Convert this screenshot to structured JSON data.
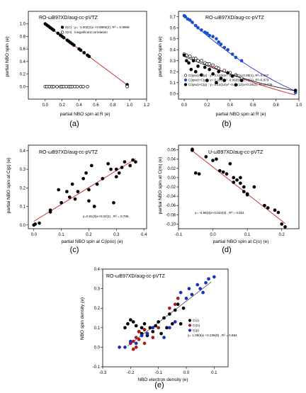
{
  "chart_data": [
    {
      "id": "a",
      "type": "scatter",
      "panel_label": "(a)",
      "title": "RO-ωB97XD/aug-cc-pVTZ",
      "xlabel": "partial NBO spin at R  (e)",
      "ylabel": "partial NBO spin  (e)",
      "xlim": [
        -0.2,
        1.2
      ],
      "ylim": [
        -0.2,
        1.2
      ],
      "xticks": [
        0.0,
        0.2,
        0.4,
        0.6,
        0.8,
        1.0,
        1.2
      ],
      "xtick_labels": [
        "0.0",
        "0.2",
        "0.4",
        "0.6",
        "0.8",
        "1.0",
        "1.2"
      ],
      "yticks": [
        0.0,
        0.2,
        0.4,
        0.6,
        0.8,
        1.0
      ],
      "ytick_labels": [
        "0.0",
        "0.2",
        "0.4",
        "0.6",
        "0.8",
        "1.0"
      ],
      "legend": [
        "Σ(C) : y= -1.002(2)x +0.9993(2), R² = 0.9999",
        "Σ(H) : insignificant correlation"
      ],
      "series": [
        {
          "name": "Σ(C)",
          "marker": "filled",
          "color": "#000000",
          "x": [
            0.0,
            0.02,
            0.04,
            0.06,
            0.08,
            0.1,
            0.15,
            0.18,
            0.2,
            0.22,
            0.26,
            0.28,
            0.3,
            0.32,
            0.34,
            0.4,
            0.42,
            0.46,
            0.5,
            0.52,
            0.97
          ],
          "y": [
            1.0,
            0.98,
            0.96,
            0.94,
            0.92,
            0.9,
            0.85,
            0.82,
            0.8,
            0.78,
            0.74,
            0.72,
            0.7,
            0.68,
            0.66,
            0.6,
            0.58,
            0.54,
            0.5,
            0.48,
            0.03
          ]
        },
        {
          "name": "Σ(H)",
          "marker": "open",
          "color": "#000000",
          "x": [
            0.0,
            0.02,
            0.05,
            0.08,
            0.1,
            0.14,
            0.18,
            0.2,
            0.22,
            0.25,
            0.28,
            0.3,
            0.32,
            0.35,
            0.38,
            0.42,
            0.45,
            0.5,
            0.97
          ],
          "y": [
            0.0,
            0.0,
            0.0,
            0.0,
            0.0,
            0.0,
            0.0,
            0.0,
            0.0,
            0.0,
            0.0,
            0.0,
            0.0,
            0.0,
            0.0,
            0.0,
            0.0,
            0.0,
            0.0
          ]
        }
      ],
      "fit_lines": [
        {
          "color": "#cc2222",
          "x": [
            0.0,
            0.97
          ],
          "y": [
            0.9993,
            0.027
          ]
        }
      ]
    },
    {
      "id": "b",
      "type": "scatter",
      "panel_label": "(b)",
      "title": "RO-ωB97XD/aug-cc-pVTZ",
      "xlabel": "partial NBO spin at R  (e)",
      "ylabel": "partial NBO spin  (e)",
      "xlim": [
        -0.05,
        1.0
      ],
      "ylim": [
        -0.05,
        0.75
      ],
      "xticks": [
        0.0,
        0.2,
        0.4,
        0.6,
        0.8,
        1.0
      ],
      "xtick_labels": [
        "0.0",
        "0.2",
        "0.4",
        "0.6",
        "0.8",
        "1.0"
      ],
      "yticks": [
        0.0,
        0.1,
        0.2,
        0.3,
        0.4,
        0.5,
        0.6,
        0.7
      ],
      "ytick_labels": [
        "0.0",
        "0.1",
        "0.2",
        "0.3",
        "0.4",
        "0.5",
        "0.6",
        "0.7"
      ],
      "legend": [
        "C(ipso)+C(p) : y= 0.12(6)x² -0.50(7)x+0.36(1), R²=0.947",
        "C(ipso)+C(p) : y= 0.26(6)x² -0.96(8)x+0.71(1), R²=0.973",
        "C(ipso)+C(p) : y= 0.14(14)x² -0.46(12)x+0.34(2), R²=0.739"
      ],
      "series": [
        {
          "name": "open",
          "marker": "open",
          "color": "#000000",
          "x": [
            0.0,
            0.02,
            0.05,
            0.08,
            0.1,
            0.12,
            0.15,
            0.18,
            0.2,
            0.22,
            0.25,
            0.28,
            0.3,
            0.35,
            0.4,
            0.45,
            0.5
          ],
          "y": [
            0.36,
            0.35,
            0.34,
            0.32,
            0.32,
            0.3,
            0.3,
            0.28,
            0.27,
            0.27,
            0.26,
            0.24,
            0.23,
            0.21,
            0.19,
            0.17,
            0.14
          ]
        },
        {
          "name": "blue",
          "marker": "filled",
          "color": "#1a4fcf",
          "x": [
            0.0,
            0.01,
            0.03,
            0.05,
            0.07,
            0.1,
            0.12,
            0.15,
            0.18,
            0.2,
            0.22,
            0.25,
            0.28,
            0.3,
            0.32,
            0.35,
            0.38,
            0.42,
            0.45,
            0.5,
            0.97
          ],
          "y": [
            0.71,
            0.7,
            0.68,
            0.67,
            0.65,
            0.62,
            0.6,
            0.58,
            0.56,
            0.55,
            0.53,
            0.52,
            0.5,
            0.47,
            0.45,
            0.42,
            0.4,
            0.36,
            0.33,
            0.3,
            0.01
          ]
        },
        {
          "name": "black",
          "marker": "filled",
          "color": "#000000",
          "x": [
            0.0,
            0.02,
            0.04,
            0.06,
            0.08,
            0.1,
            0.12,
            0.15,
            0.18,
            0.2,
            0.22,
            0.25,
            0.28,
            0.3,
            0.32,
            0.35,
            0.38,
            0.42,
            0.45,
            0.5,
            0.97
          ],
          "y": [
            0.35,
            0.3,
            0.28,
            0.22,
            0.3,
            0.2,
            0.25,
            0.17,
            0.24,
            0.12,
            0.22,
            0.18,
            0.1,
            0.2,
            0.14,
            0.12,
            0.19,
            0.16,
            0.08,
            0.12,
            0.03
          ]
        }
      ],
      "fit_lines": [
        {
          "color": "#cc2222",
          "coef": [
            0.12,
            -0.5,
            0.36
          ],
          "x_range": [
            0.0,
            0.97
          ]
        },
        {
          "color": "#2233cc",
          "coef": [
            0.26,
            -0.96,
            0.71
          ],
          "x_range": [
            0.0,
            0.97
          ]
        },
        {
          "color": "#222222",
          "coef": [
            0.14,
            -0.46,
            0.34
          ],
          "x_range": [
            0.0,
            0.97
          ]
        }
      ]
    },
    {
      "id": "c",
      "type": "scatter",
      "panel_label": "(c)",
      "title": "RO-ωB97XD/aug-cc-pVTZ",
      "xlabel": "partial NBO spin at C(ipso)  (e)",
      "ylabel": "partial NBO spin at C(p)  (e)",
      "xlim": [
        -0.02,
        0.41
      ],
      "ylim": [
        -0.02,
        0.43
      ],
      "xticks": [
        0.0,
        0.1,
        0.2,
        0.3,
        0.4
      ],
      "xtick_labels": [
        "0.0",
        "0.1",
        "0.2",
        "0.3",
        "0.4"
      ],
      "yticks": [
        0.0,
        0.1,
        0.2,
        0.3,
        0.4
      ],
      "ytick_labels": [
        "0.0",
        "0.1",
        "0.2",
        "0.3",
        "0.4"
      ],
      "legend": [
        "y=0.91(8)x+0.02(2) ,  R² = 0.785"
      ],
      "series": [
        {
          "name": "points",
          "marker": "filled",
          "color": "#000000",
          "x": [
            0.0,
            0.005,
            0.02,
            0.06,
            0.06,
            0.09,
            0.1,
            0.12,
            0.13,
            0.14,
            0.15,
            0.16,
            0.18,
            0.19,
            0.2,
            0.2,
            0.21,
            0.22,
            0.23,
            0.25,
            0.27,
            0.28,
            0.29,
            0.3,
            0.3,
            0.31,
            0.32,
            0.33,
            0.35,
            0.36,
            0.37
          ],
          "y": [
            0.0,
            0.005,
            0.01,
            0.07,
            0.08,
            0.19,
            0.12,
            0.18,
            0.15,
            0.22,
            0.14,
            0.18,
            0.25,
            0.28,
            0.13,
            0.19,
            0.32,
            0.1,
            0.22,
            0.25,
            0.33,
            0.3,
            0.12,
            0.3,
            0.26,
            0.28,
            0.31,
            0.34,
            0.32,
            0.35,
            0.34
          ]
        }
      ],
      "fit_lines": [
        {
          "color": "#cc2222",
          "x": [
            0.0,
            0.37
          ],
          "y": [
            0.02,
            0.3567
          ]
        }
      ]
    },
    {
      "id": "d",
      "type": "scatter",
      "panel_label": "(d)",
      "title": "U-ωB97XD/aug-cc-pVTZ",
      "xlabel": "partial NBO spin at C(o)  (e)",
      "ylabel": "partial NBO spin at C(m)  (e)",
      "xlim": [
        -0.1,
        0.25
      ],
      "ylim": [
        -0.11,
        0.07
      ],
      "xticks": [
        -0.1,
        0.0,
        0.1,
        0.2
      ],
      "xtick_labels": [
        "-0.1",
        "0.0",
        "0.1",
        "0.2"
      ],
      "yticks": [
        -0.1,
        -0.08,
        -0.06,
        -0.04,
        -0.02,
        0.0,
        0.02,
        0.04,
        0.06
      ],
      "ytick_labels": [
        "-0.10",
        "-0.08",
        "-0.06",
        "-0.04",
        "-0.02",
        "0.00",
        "0.02",
        "0.04",
        "0.06"
      ],
      "legend": [
        "y= -0.58(3)x+0.023(3) ,  R² = 0.921"
      ],
      "series": [
        {
          "name": "points",
          "marker": "filled",
          "color": "#000000",
          "x": [
            -0.06,
            -0.06,
            -0.05,
            -0.04,
            -0.02,
            0.0,
            0.01,
            0.02,
            0.03,
            0.04,
            0.05,
            0.06,
            0.06,
            0.07,
            0.08,
            0.08,
            0.09,
            0.09,
            0.1,
            0.1,
            0.12,
            0.15,
            0.16,
            0.18,
            0.19,
            0.2,
            0.21
          ],
          "y": [
            0.061,
            0.059,
            0.01,
            0.008,
            0.045,
            0.037,
            0.04,
            0.015,
            0.012,
            0.008,
            0.03,
            0.0,
            -0.01,
            -0.005,
            0.0,
            -0.012,
            -0.02,
            -0.03,
            -0.035,
            -0.037,
            -0.02,
            -0.06,
            -0.065,
            -0.07,
            -0.075,
            -0.1,
            -0.106
          ]
        }
      ],
      "fit_lines": [
        {
          "color": "#cc2222",
          "x": [
            -0.06,
            0.21
          ],
          "y": [
            0.0578,
            -0.0988
          ]
        }
      ]
    },
    {
      "id": "e",
      "type": "scatter",
      "panel_label": "(e)",
      "title": "RO-ωB97XD/aug-cc-pVTZ",
      "xlabel": "NBO electron density  (e)",
      "ylabel": "NBO spin density  (e)",
      "xlim": [
        -0.3,
        0.15
      ],
      "ylim": [
        -0.1,
        0.4
      ],
      "xticks": [
        -0.3,
        -0.2,
        -0.1,
        0.0,
        0.1
      ],
      "xtick_labels": [
        "-0.3",
        "-0.2",
        "-0.1",
        "0.0",
        "0.1"
      ],
      "yticks": [
        -0.1,
        0.0,
        0.1,
        0.2,
        0.3,
        0.4
      ],
      "ytick_labels": [
        "-0.1",
        "0.0",
        "0.1",
        "0.2",
        "0.3",
        "0.4"
      ],
      "legend": [
        "C(o)",
        "C(m)",
        "C(p)",
        "y= 1.09(6)x +0.236(8) ,  R² = 0.884"
      ],
      "series": [
        {
          "name": "C(o)",
          "marker": "filled",
          "color": "#000000",
          "x": [
            -0.22,
            -0.21,
            -0.2,
            -0.19,
            -0.18,
            -0.17,
            -0.16,
            -0.16,
            -0.15,
            -0.15,
            -0.14,
            -0.13,
            -0.12,
            -0.11,
            -0.1,
            -0.09,
            -0.08,
            -0.07,
            -0.06,
            -0.05,
            -0.04,
            -0.03,
            -0.02,
            -0.01
          ],
          "y": [
            0.1,
            0.12,
            0.14,
            0.13,
            0.11,
            0.08,
            0.1,
            0.07,
            0.12,
            0.09,
            0.06,
            0.1,
            0.08,
            0.11,
            0.13,
            0.07,
            0.15,
            0.1,
            0.17,
            0.12,
            0.19,
            0.22,
            0.12,
            0.2
          ]
        },
        {
          "name": "C(m)",
          "marker": "filled",
          "color": "#aa1a1a",
          "x": [
            -0.2,
            -0.19,
            -0.19,
            -0.18,
            -0.18,
            -0.17,
            -0.17,
            -0.16,
            -0.15,
            -0.15,
            -0.14,
            -0.12,
            -0.1,
            -0.06,
            -0.04,
            -0.03
          ],
          "y": [
            0.02,
            -0.01,
            0.03,
            0.0,
            0.05,
            0.04,
            0.08,
            0.06,
            0.02,
            0.09,
            0.07,
            0.05,
            0.1,
            0.2,
            0.22,
            0.25
          ]
        },
        {
          "name": "C(p)",
          "marker": "filled",
          "color": "#1a2fbf",
          "x": [
            -0.24,
            -0.22,
            -0.2,
            -0.18,
            -0.16,
            -0.14,
            -0.12,
            -0.08,
            -0.06,
            -0.04,
            -0.02,
            0.0,
            0.01,
            0.02,
            0.04,
            0.05,
            0.06,
            0.07,
            0.08,
            0.1
          ],
          "y": [
            0.0,
            0.0,
            0.03,
            0.02,
            0.06,
            0.07,
            0.1,
            0.05,
            0.1,
            0.13,
            0.28,
            0.25,
            0.3,
            0.27,
            0.32,
            0.3,
            0.28,
            0.33,
            0.35,
            0.36
          ]
        }
      ],
      "fit_lines": [
        {
          "color": "#555555",
          "x": [
            -0.21,
            0.09
          ],
          "y": [
            0.0071,
            0.3341
          ]
        }
      ]
    }
  ]
}
